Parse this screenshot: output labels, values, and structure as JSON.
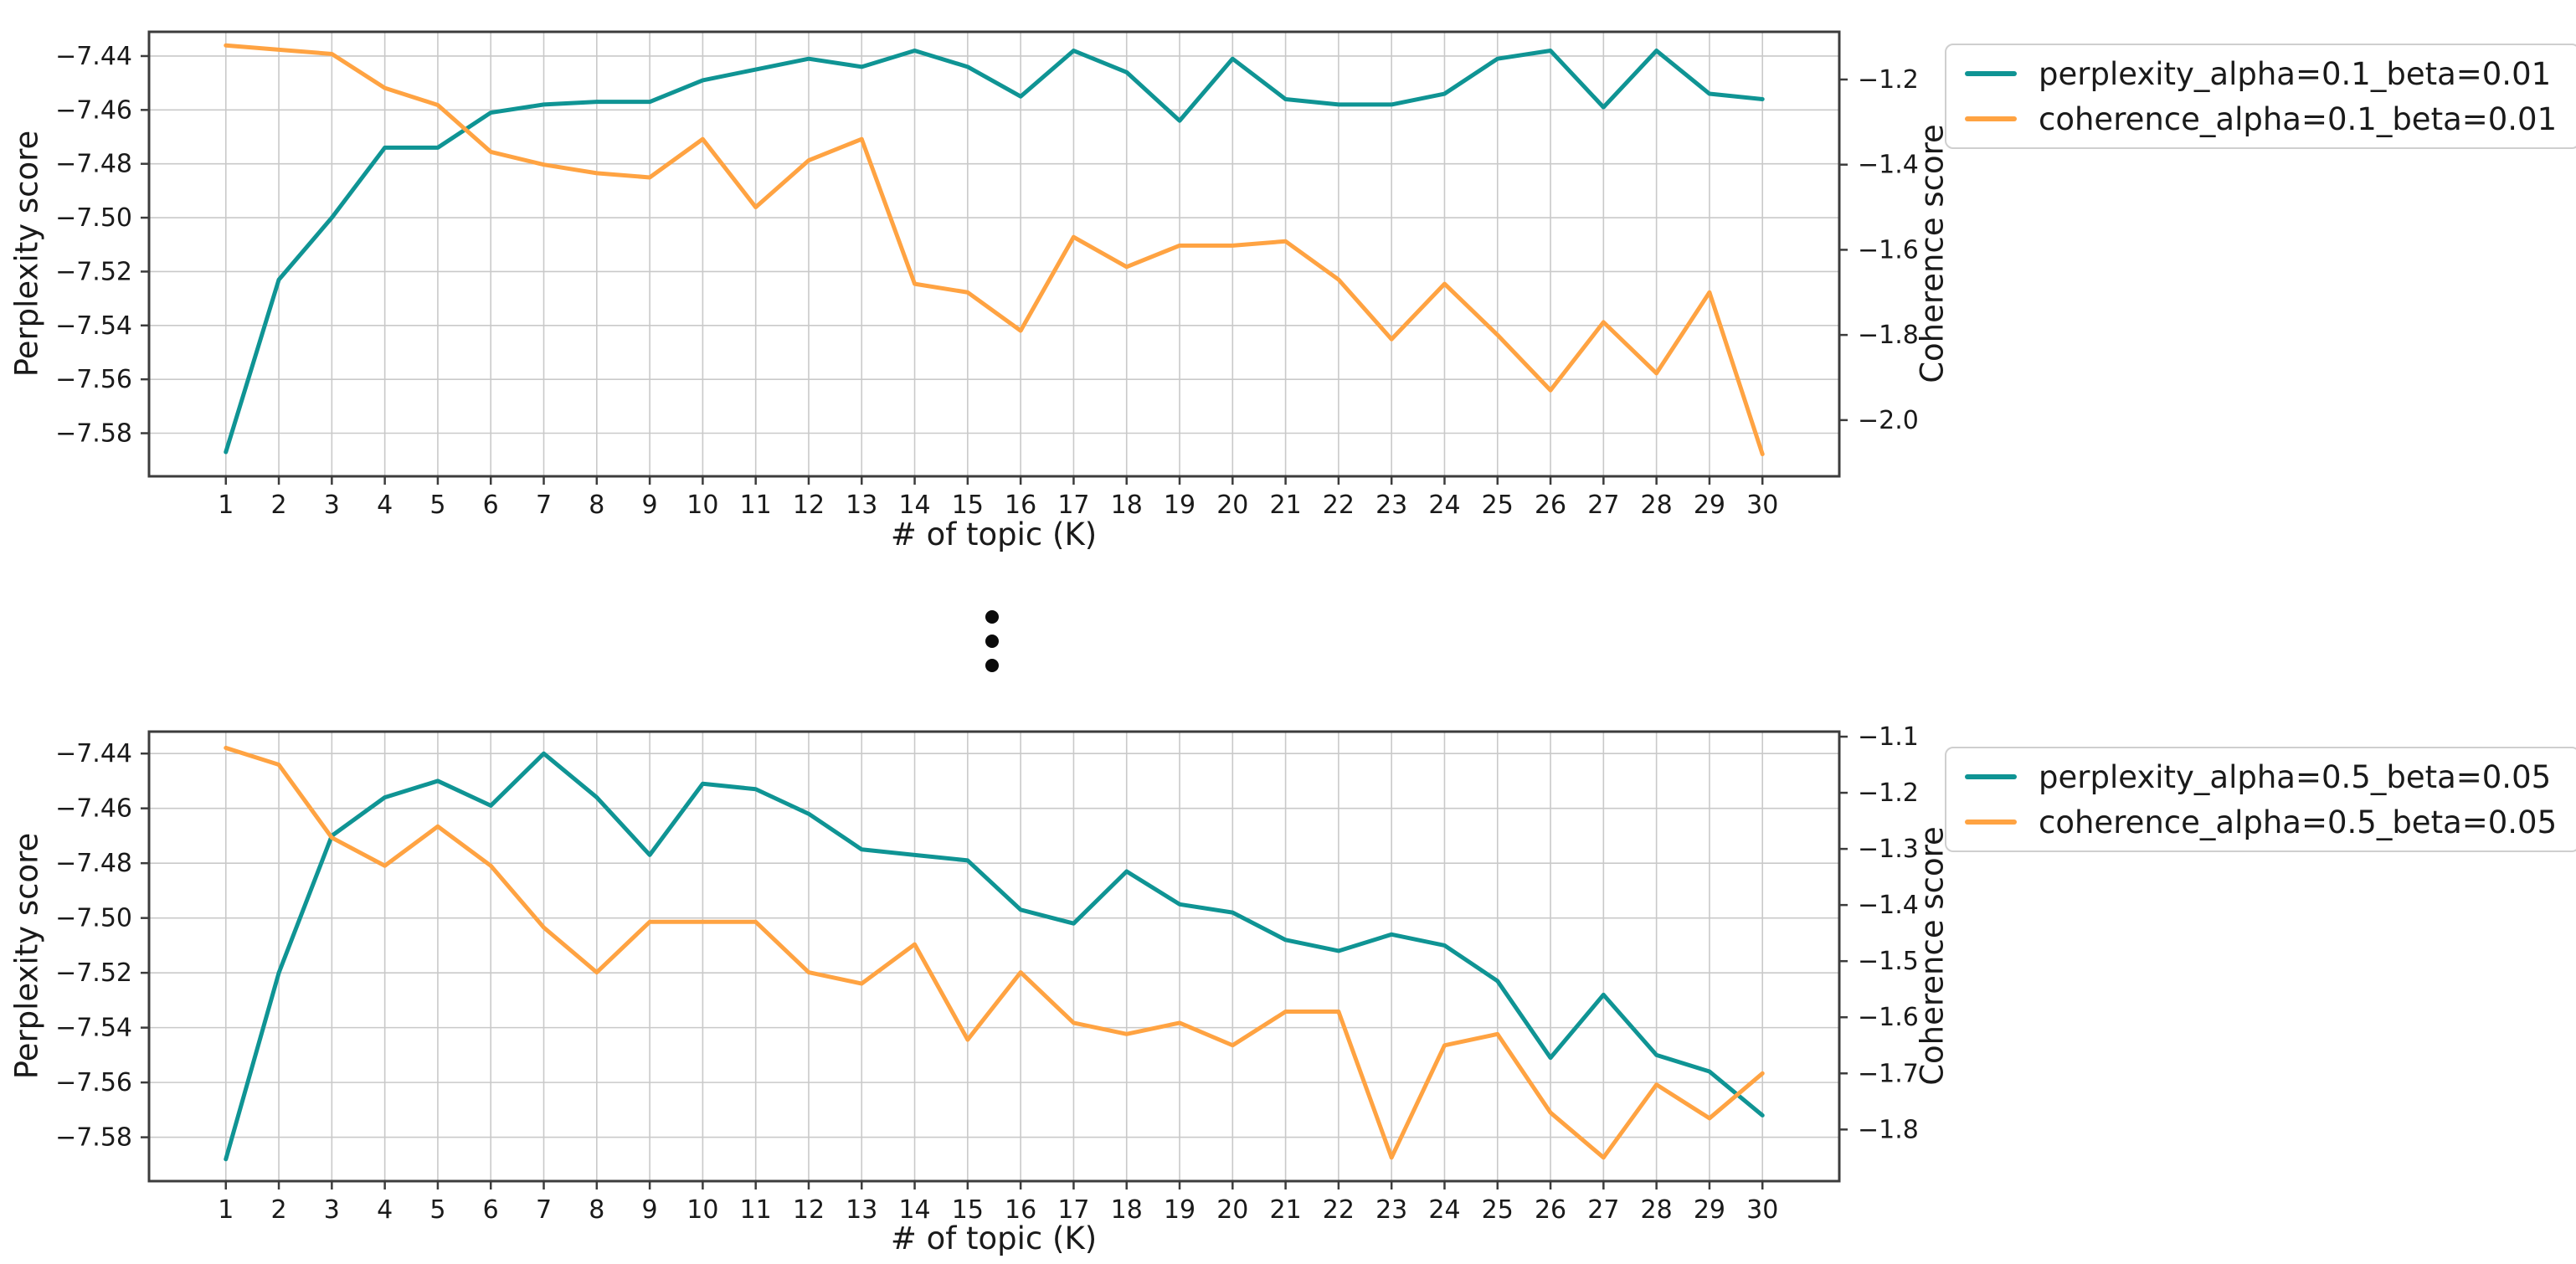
{
  "figure": {
    "background": "#ffffff",
    "separator_dots": 3
  },
  "chart_data": [
    {
      "type": "line",
      "position": "top",
      "xlabel": "# of topic (K)",
      "ylabel_left": "Perplexity score",
      "ylabel_right": "Coherence score",
      "x_ticks": [
        1,
        2,
        3,
        4,
        5,
        6,
        7,
        8,
        9,
        10,
        11,
        12,
        13,
        14,
        15,
        16,
        17,
        18,
        19,
        20,
        21,
        22,
        23,
        24,
        25,
        26,
        27,
        28,
        29,
        30
      ],
      "y_ticks_left": [
        -7.44,
        -7.46,
        -7.48,
        -7.5,
        -7.52,
        -7.54,
        -7.56,
        -7.58
      ],
      "y_ticks_right": [
        -1.2,
        -1.4,
        -1.6,
        -1.8,
        -2.0
      ],
      "xlim": [
        -0.45,
        31.45
      ],
      "ylim_left": [
        -7.596,
        -7.431
      ],
      "ylim_right": [
        -2.132,
        -1.088
      ],
      "grid": true,
      "legend_position": "outside-upper-right",
      "x": [
        1,
        2,
        3,
        4,
        5,
        6,
        7,
        8,
        9,
        10,
        11,
        12,
        13,
        14,
        15,
        16,
        17,
        18,
        19,
        20,
        21,
        22,
        23,
        24,
        25,
        26,
        27,
        28,
        29,
        30
      ],
      "series": [
        {
          "name": "perplexity_alpha=0.1_beta=0.01",
          "axis": "left",
          "color": "#0f9494",
          "values": [
            -7.587,
            -7.523,
            -7.5,
            -7.474,
            -7.474,
            -7.461,
            -7.458,
            -7.457,
            -7.457,
            -7.449,
            -7.445,
            -7.441,
            -7.444,
            -7.438,
            -7.444,
            -7.455,
            -7.438,
            -7.446,
            -7.464,
            -7.441,
            -7.456,
            -7.458,
            -7.458,
            -7.454,
            -7.441,
            -7.438,
            -7.459,
            -7.438,
            -7.454,
            -7.456
          ]
        },
        {
          "name": "coherence_alpha=0.1_beta=0.01",
          "axis": "right",
          "color": "#ffa342",
          "values": [
            -1.12,
            -1.13,
            -1.14,
            -1.22,
            -1.26,
            -1.37,
            -1.4,
            -1.42,
            -1.43,
            -1.34,
            -1.5,
            -1.39,
            -1.34,
            -1.68,
            -1.7,
            -1.79,
            -1.57,
            -1.64,
            -1.59,
            -1.59,
            -1.58,
            -1.67,
            -1.81,
            -1.68,
            -1.8,
            -1.93,
            -1.77,
            -1.89,
            -1.7,
            -2.08
          ]
        }
      ]
    },
    {
      "type": "line",
      "position": "bottom",
      "xlabel": "# of topic (K)",
      "ylabel_left": "Perplexity score",
      "ylabel_right": "Coherence score",
      "x_ticks": [
        1,
        2,
        3,
        4,
        5,
        6,
        7,
        8,
        9,
        10,
        11,
        12,
        13,
        14,
        15,
        16,
        17,
        18,
        19,
        20,
        21,
        22,
        23,
        24,
        25,
        26,
        27,
        28,
        29,
        30
      ],
      "y_ticks_left": [
        -7.44,
        -7.46,
        -7.48,
        -7.5,
        -7.52,
        -7.54,
        -7.56,
        -7.58
      ],
      "y_ticks_right": [
        -1.1,
        -1.2,
        -1.3,
        -1.4,
        -1.5,
        -1.6,
        -1.7,
        -1.8
      ],
      "xlim": [
        -0.45,
        31.45
      ],
      "ylim_left": [
        -7.596,
        -7.432
      ],
      "ylim_right": [
        -1.892,
        -1.091
      ],
      "grid": true,
      "legend_position": "outside-upper-right",
      "x": [
        1,
        2,
        3,
        4,
        5,
        6,
        7,
        8,
        9,
        10,
        11,
        12,
        13,
        14,
        15,
        16,
        17,
        18,
        19,
        20,
        21,
        22,
        23,
        24,
        25,
        26,
        27,
        28,
        29,
        30
      ],
      "series": [
        {
          "name": "perplexity_alpha=0.5_beta=0.05",
          "axis": "left",
          "color": "#0f9494",
          "values": [
            -7.588,
            -7.52,
            -7.47,
            -7.456,
            -7.45,
            -7.459,
            -7.44,
            -7.456,
            -7.477,
            -7.451,
            -7.453,
            -7.462,
            -7.475,
            -7.477,
            -7.479,
            -7.497,
            -7.502,
            -7.483,
            -7.495,
            -7.498,
            -7.508,
            -7.512,
            -7.506,
            -7.51,
            -7.523,
            -7.551,
            -7.528,
            -7.55,
            -7.556,
            -7.572
          ]
        },
        {
          "name": "coherence_alpha=0.5_beta=0.05",
          "axis": "right",
          "color": "#ffa342",
          "values": [
            -1.12,
            -1.15,
            -1.28,
            -1.33,
            -1.26,
            -1.33,
            -1.44,
            -1.52,
            -1.43,
            -1.43,
            -1.43,
            -1.52,
            -1.54,
            -1.47,
            -1.64,
            -1.52,
            -1.61,
            -1.63,
            -1.61,
            -1.65,
            -1.59,
            -1.59,
            -1.85,
            -1.65,
            -1.63,
            -1.77,
            -1.85,
            -1.72,
            -1.78,
            -1.7
          ]
        }
      ]
    }
  ]
}
